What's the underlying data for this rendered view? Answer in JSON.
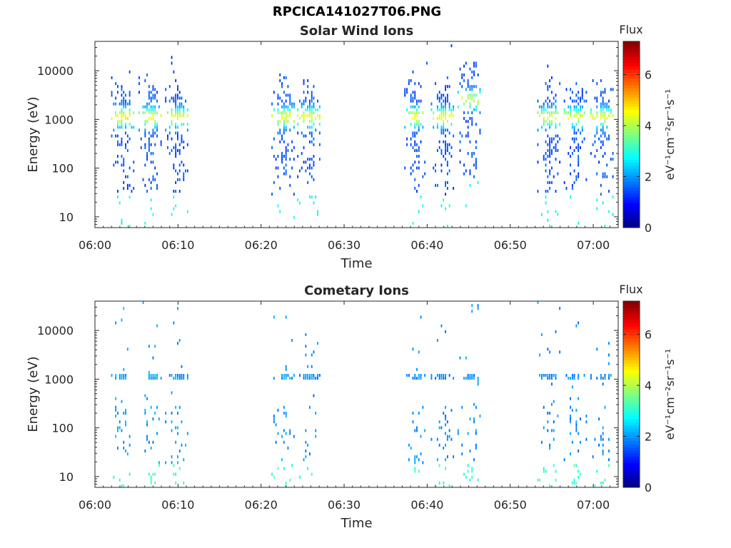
{
  "figure": {
    "title": "RPCICA141027T06.PNG"
  },
  "colormap": {
    "stops": [
      "#00007f",
      "#0000ff",
      "#007fff",
      "#00ffff",
      "#7fff7f",
      "#ffff00",
      "#ff7f00",
      "#ff0000",
      "#7f0000"
    ]
  },
  "chart_data": [
    {
      "type": "heatmap",
      "title": "Solar Wind Ions",
      "xlabel": "Time",
      "ylabel": "Energy (eV)",
      "x_ticks": [
        "06:00",
        "06:10",
        "06:20",
        "06:30",
        "06:40",
        "06:50",
        "07:00"
      ],
      "x_tick_minutes": [
        0,
        10,
        20,
        30,
        40,
        50,
        60
      ],
      "xlim_minutes": [
        0,
        63
      ],
      "y_scale": "log",
      "y_ticks": [
        "10",
        "100",
        "1000",
        "10000"
      ],
      "y_tick_values": [
        10,
        100,
        1000,
        10000
      ],
      "ylim": [
        6,
        40000
      ],
      "colorbar": {
        "label": "Flux",
        "units": "eV⁻¹cm⁻²sr⁻¹s⁻¹",
        "ticks": [
          "0",
          "2",
          "4",
          "6"
        ],
        "range": [
          0,
          7.3
        ]
      },
      "bursts": [
        {
          "t": 3.5,
          "peak_energy": 1100,
          "peak_flux": 3.2
        },
        {
          "t": 6.8,
          "peak_energy": 1100,
          "peak_flux": 3.0
        },
        {
          "t": 10.0,
          "peak_energy": 1100,
          "peak_flux": 3.0
        },
        {
          "t": 22.8,
          "peak_energy": 1100,
          "peak_flux": 3.0
        },
        {
          "t": 25.9,
          "peak_energy": 1100,
          "peak_flux": 3.0
        },
        {
          "t": 38.8,
          "peak_energy": 1100,
          "peak_flux": 3.1
        },
        {
          "t": 42.0,
          "peak_energy": 1100,
          "peak_flux": 3.1
        },
        {
          "t": 45.2,
          "peak_energy": 2500,
          "peak_flux": 2.8
        },
        {
          "t": 54.8,
          "peak_energy": 1100,
          "peak_flux": 3.0
        },
        {
          "t": 58.0,
          "peak_energy": 1100,
          "peak_flux": 2.9
        },
        {
          "t": 61.2,
          "peak_energy": 1100,
          "peak_flux": 3.0
        }
      ]
    },
    {
      "type": "heatmap",
      "title": "Cometary Ions",
      "xlabel": "Time",
      "ylabel": "Energy (eV)",
      "x_ticks": [
        "06:00",
        "06:10",
        "06:20",
        "06:30",
        "06:40",
        "06:50",
        "07:00"
      ],
      "x_tick_minutes": [
        0,
        10,
        20,
        30,
        40,
        50,
        60
      ],
      "xlim_minutes": [
        0,
        63
      ],
      "y_scale": "log",
      "y_ticks": [
        "10",
        "100",
        "1000",
        "10000"
      ],
      "y_tick_values": [
        10,
        100,
        1000,
        10000
      ],
      "ylim": [
        6,
        40000
      ],
      "colorbar": {
        "label": "Flux",
        "units": "eV⁻¹cm⁻²sr⁻¹s⁻¹",
        "ticks": [
          "0",
          "2",
          "4",
          "6"
        ],
        "range": [
          0,
          7.3
        ]
      },
      "bursts": [
        {
          "t": 3.5,
          "peak_energy": 1150,
          "peak_flux": 1.8
        },
        {
          "t": 6.8,
          "peak_energy": 1150,
          "peak_flux": 1.7
        },
        {
          "t": 10.0,
          "peak_energy": 1150,
          "peak_flux": 1.7
        },
        {
          "t": 22.8,
          "peak_energy": 1150,
          "peak_flux": 1.7
        },
        {
          "t": 25.9,
          "peak_energy": 1150,
          "peak_flux": 1.6
        },
        {
          "t": 38.8,
          "peak_energy": 1150,
          "peak_flux": 1.6
        },
        {
          "t": 42.0,
          "peak_energy": 1150,
          "peak_flux": 1.6
        },
        {
          "t": 45.2,
          "peak_energy": 1150,
          "peak_flux": 1.6
        },
        {
          "t": 54.8,
          "peak_energy": 1150,
          "peak_flux": 1.6
        },
        {
          "t": 58.0,
          "peak_energy": 1150,
          "peak_flux": 1.6
        },
        {
          "t": 61.2,
          "peak_energy": 1150,
          "peak_flux": 1.6
        }
      ]
    }
  ]
}
